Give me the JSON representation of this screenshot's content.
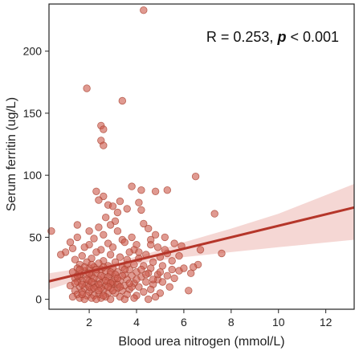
{
  "chart_data": {
    "type": "scatter",
    "xlabel": "Blood urea nitrogen (mmol/L)",
    "ylabel": "Serum ferritin (ug/L)",
    "xlim": [
      0.3,
      13.2
    ],
    "ylim": [
      -8,
      238
    ],
    "x_ticks": [
      2,
      4,
      6,
      8,
      10,
      12
    ],
    "y_ticks": [
      0,
      50,
      100,
      150,
      200
    ],
    "annotation": {
      "r_text": "R = 0.253,",
      "p_symbol": "p",
      "p_text": " < 0.001"
    },
    "regression": {
      "x_start": 0.3,
      "y_start": 14.5,
      "x_end": 13.2,
      "y_end": 74
    },
    "ci_band": [
      {
        "x": 0.3,
        "lo": 8,
        "hi": 21
      },
      {
        "x": 2,
        "lo": 18,
        "hi": 26
      },
      {
        "x": 3,
        "lo": 23.5,
        "hi": 29.5
      },
      {
        "x": 4.5,
        "lo": 30,
        "hi": 37
      },
      {
        "x": 6,
        "lo": 34,
        "hi": 46
      },
      {
        "x": 8,
        "lo": 38,
        "hi": 57
      },
      {
        "x": 10,
        "lo": 42,
        "hi": 69
      },
      {
        "x": 13.2,
        "lo": 48,
        "hi": 93
      }
    ],
    "colors": {
      "point": "#cd5c4e",
      "point_edge": "#a8402f",
      "line": "#b5362a",
      "band": "#e8a6a0"
    },
    "points": [
      [
        4.3,
        233
      ],
      [
        1.9,
        170
      ],
      [
        3.4,
        160
      ],
      [
        2.5,
        140
      ],
      [
        2.6,
        137
      ],
      [
        2.5,
        128
      ],
      [
        2.6,
        124
      ],
      [
        6.5,
        99
      ],
      [
        3.8,
        91
      ],
      [
        4.2,
        88
      ],
      [
        2.3,
        87
      ],
      [
        4.8,
        87
      ],
      [
        5.3,
        88
      ],
      [
        2.6,
        83
      ],
      [
        2.4,
        80
      ],
      [
        3.3,
        79
      ],
      [
        4.1,
        78
      ],
      [
        2.8,
        76
      ],
      [
        3.0,
        75
      ],
      [
        3.6,
        73
      ],
      [
        4.2,
        72
      ],
      [
        3.2,
        70
      ],
      [
        7.3,
        69
      ],
      [
        2.7,
        66
      ],
      [
        3.1,
        63
      ],
      [
        4.3,
        61
      ],
      [
        2.9,
        60
      ],
      [
        1.5,
        60
      ],
      [
        2.4,
        58
      ],
      [
        4.5,
        57
      ],
      [
        0.4,
        55
      ],
      [
        2.0,
        55
      ],
      [
        3.2,
        55
      ],
      [
        4.8,
        52
      ],
      [
        2.6,
        52
      ],
      [
        1.5,
        50
      ],
      [
        3.8,
        50
      ],
      [
        5.2,
        50
      ],
      [
        2.2,
        49
      ],
      [
        3.4,
        48
      ],
      [
        4.6,
        48
      ],
      [
        3.5,
        46
      ],
      [
        1.2,
        46
      ],
      [
        2.8,
        45
      ],
      [
        5.6,
        45
      ],
      [
        4.0,
        44
      ],
      [
        2.0,
        44
      ],
      [
        5.9,
        43
      ],
      [
        1.8,
        42
      ],
      [
        3.0,
        42
      ],
      [
        4.9,
        42
      ],
      [
        1.3,
        41
      ],
      [
        3.9,
        40
      ],
      [
        2.5,
        40
      ],
      [
        6.7,
        40
      ],
      [
        1.0,
        38
      ],
      [
        3.7,
        38
      ],
      [
        2.3,
        38
      ],
      [
        5.3,
        37
      ],
      [
        7.6,
        37
      ],
      [
        0.8,
        36
      ],
      [
        4.4,
        36
      ],
      [
        2.9,
        36
      ],
      [
        1.7,
        35
      ],
      [
        3.3,
        34
      ],
      [
        5.0,
        34
      ],
      [
        2.1,
        33
      ],
      [
        4.1,
        33
      ],
      [
        1.4,
        32
      ],
      [
        3.6,
        32
      ],
      [
        2.6,
        31
      ],
      [
        5.5,
        31
      ],
      [
        1.9,
        30
      ],
      [
        3.1,
        30
      ],
      [
        4.7,
        30
      ],
      [
        2.4,
        29
      ],
      [
        3.9,
        28
      ],
      [
        1.6,
        28
      ],
      [
        6.6,
        28
      ],
      [
        2.8,
        27
      ],
      [
        4.3,
        27
      ],
      [
        5.1,
        27
      ],
      [
        2.2,
        26
      ],
      [
        3.4,
        26
      ],
      [
        6.4,
        26
      ],
      [
        1.5,
        25
      ],
      [
        2.0,
        25
      ],
      [
        3.0,
        25
      ],
      [
        4.6,
        25
      ],
      [
        2.5,
        24
      ],
      [
        3.7,
        24
      ],
      [
        1.8,
        23
      ],
      [
        5.8,
        23
      ],
      [
        2.7,
        23
      ],
      [
        4.0,
        22
      ],
      [
        1.3,
        22
      ],
      [
        3.2,
        22
      ],
      [
        6.3,
        21
      ],
      [
        2.3,
        21
      ],
      [
        4.5,
        21
      ],
      [
        1.9,
        20
      ],
      [
        3.5,
        20
      ],
      [
        2.9,
        20
      ],
      [
        5.3,
        19
      ],
      [
        2.1,
        19
      ],
      [
        3.8,
        19
      ],
      [
        1.6,
        18
      ],
      [
        4.2,
        18
      ],
      [
        2.6,
        18
      ],
      [
        3.1,
        17
      ],
      [
        1.4,
        17
      ],
      [
        5.6,
        17
      ],
      [
        2.4,
        16
      ],
      [
        4.9,
        16
      ],
      [
        3.6,
        16
      ],
      [
        2.0,
        15
      ],
      [
        1.7,
        15
      ],
      [
        3.3,
        15
      ],
      [
        4.4,
        14
      ],
      [
        2.8,
        14
      ],
      [
        1.5,
        14
      ],
      [
        5.1,
        14
      ],
      [
        2.2,
        13
      ],
      [
        3.9,
        13
      ],
      [
        2.5,
        13
      ],
      [
        1.9,
        12
      ],
      [
        3.0,
        12
      ],
      [
        4.7,
        12
      ],
      [
        1.2,
        11
      ],
      [
        2.7,
        11
      ],
      [
        3.5,
        11
      ],
      [
        2.3,
        10
      ],
      [
        4.1,
        10
      ],
      [
        1.6,
        10
      ],
      [
        5.4,
        10
      ],
      [
        2.9,
        9
      ],
      [
        3.2,
        9
      ],
      [
        1.8,
        9
      ],
      [
        2.1,
        8
      ],
      [
        4.6,
        8
      ],
      [
        3.7,
        8
      ],
      [
        6.2,
        7
      ],
      [
        1.4,
        7
      ],
      [
        2.6,
        7
      ],
      [
        3.4,
        7
      ],
      [
        2.0,
        6
      ],
      [
        4.3,
        6
      ],
      [
        1.7,
        6
      ],
      [
        2.8,
        5
      ],
      [
        3.1,
        5
      ],
      [
        5.0,
        5
      ],
      [
        1.5,
        4
      ],
      [
        2.4,
        4
      ],
      [
        3.6,
        4
      ],
      [
        2.2,
        3
      ],
      [
        4.0,
        3
      ],
      [
        1.9,
        3
      ],
      [
        2.7,
        2
      ],
      [
        3.3,
        2
      ],
      [
        1.3,
        2
      ],
      [
        4.8,
        2
      ],
      [
        2.5,
        1
      ],
      [
        3.9,
        1
      ],
      [
        1.6,
        1
      ],
      [
        2.1,
        1
      ],
      [
        2.9,
        0
      ],
      [
        3.5,
        0
      ],
      [
        1.8,
        0
      ],
      [
        4.5,
        0
      ],
      [
        2.3,
        0
      ],
      [
        3.0,
        14
      ],
      [
        2.0,
        21
      ],
      [
        2.6,
        26
      ],
      [
        3.4,
        19
      ],
      [
        1.7,
        12
      ],
      [
        2.2,
        17
      ],
      [
        3.8,
        10
      ],
      [
        2.5,
        9
      ],
      [
        1.4,
        13
      ],
      [
        2.9,
        22
      ],
      [
        3.2,
        12
      ],
      [
        2.1,
        28
      ],
      [
        1.6,
        20
      ],
      [
        2.8,
        18
      ],
      [
        3.6,
        28
      ],
      [
        4.2,
        24
      ],
      [
        2.4,
        12
      ],
      [
        1.9,
        16
      ],
      [
        3.1,
        20
      ],
      [
        2.7,
        15
      ],
      [
        2.0,
        10
      ],
      [
        1.5,
        19
      ],
      [
        3.7,
        13
      ],
      [
        2.3,
        24
      ],
      [
        4.4,
        20
      ],
      [
        2.6,
        3
      ],
      [
        3.3,
        10
      ],
      [
        1.8,
        26
      ],
      [
        2.2,
        9
      ],
      [
        3.0,
        7
      ],
      [
        2.5,
        19
      ],
      [
        1.7,
        4
      ],
      [
        2.9,
        13
      ],
      [
        3.5,
        24
      ],
      [
        2.1,
        14
      ],
      [
        4.0,
        16
      ],
      [
        2.4,
        7
      ],
      [
        1.6,
        24
      ],
      [
        3.2,
        17
      ],
      [
        2.8,
        10
      ],
      [
        5.5,
        24
      ],
      [
        4.9,
        20
      ],
      [
        5.8,
        35
      ],
      [
        5.2,
        40
      ],
      [
        6.0,
        25
      ],
      [
        4.7,
        16
      ],
      [
        4.1,
        38
      ],
      [
        5.0,
        22
      ],
      [
        4.6,
        44
      ]
    ]
  }
}
